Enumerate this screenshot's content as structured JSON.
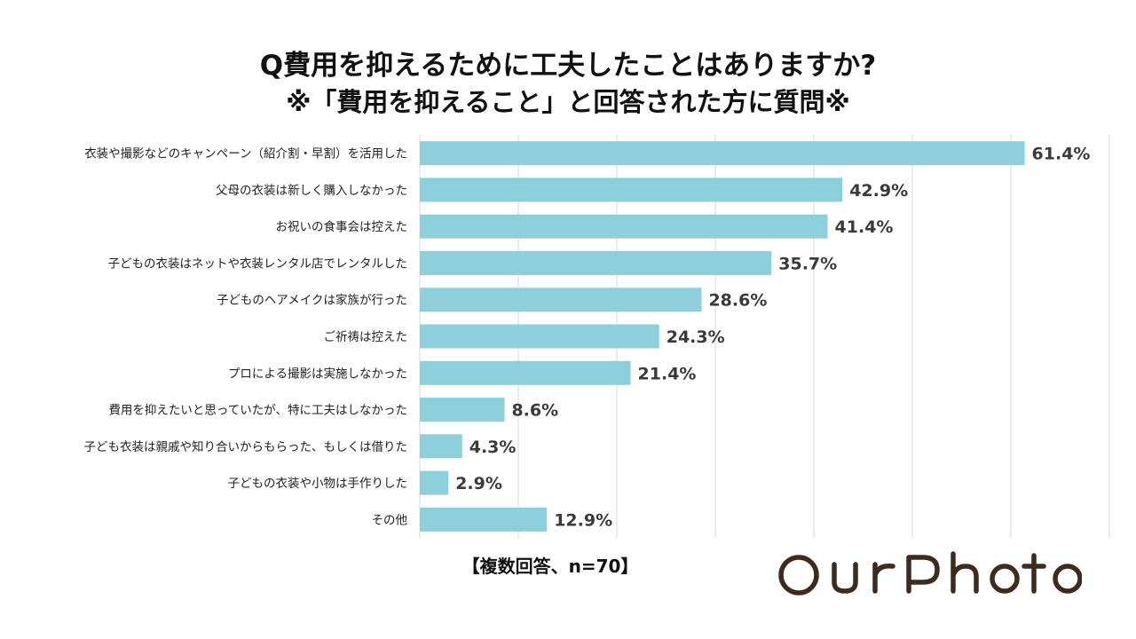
{
  "title": "Q費用を抑えるために工夫したことはありますか?",
  "subtitle": "※「費用を抑えること」と回答された方に質問※",
  "footnote": "【複数回答、n=70】",
  "logo": "OurPhoto",
  "chart_data": {
    "type": "bar",
    "orientation": "horizontal",
    "categories": [
      "衣装や撮影などのキャンペーン（紹介割・早割）を活用した",
      "父母の衣装は新しく購入しなかった",
      "お祝いの食事会は控えた",
      "子どもの衣装はネットや衣装レンタル店でレンタルした",
      "子どものヘアメイクは家族が行った",
      "ご祈祷は控えた",
      "プロによる撮影は実施しなかった",
      "費用を抑えたいと思っていたが、特に工夫はしなかった",
      "子ども衣装は親戚や知り合いからもらった、もしくは借りた",
      "子どもの衣装や小物は手作りした",
      "その他"
    ],
    "values": [
      61.4,
      42.9,
      41.4,
      35.7,
      28.6,
      24.3,
      21.4,
      8.6,
      4.3,
      2.9,
      12.9
    ],
    "value_labels": [
      "61.4%",
      "42.9%",
      "41.4%",
      "35.7%",
      "28.6%",
      "24.3%",
      "21.4%",
      "8.6%",
      "4.3%",
      "2.9%",
      "12.9%"
    ],
    "xlim": [
      0,
      70
    ],
    "grid": true,
    "bar_color": "#8ecfdc",
    "grid_color": "#d9d9d9"
  }
}
